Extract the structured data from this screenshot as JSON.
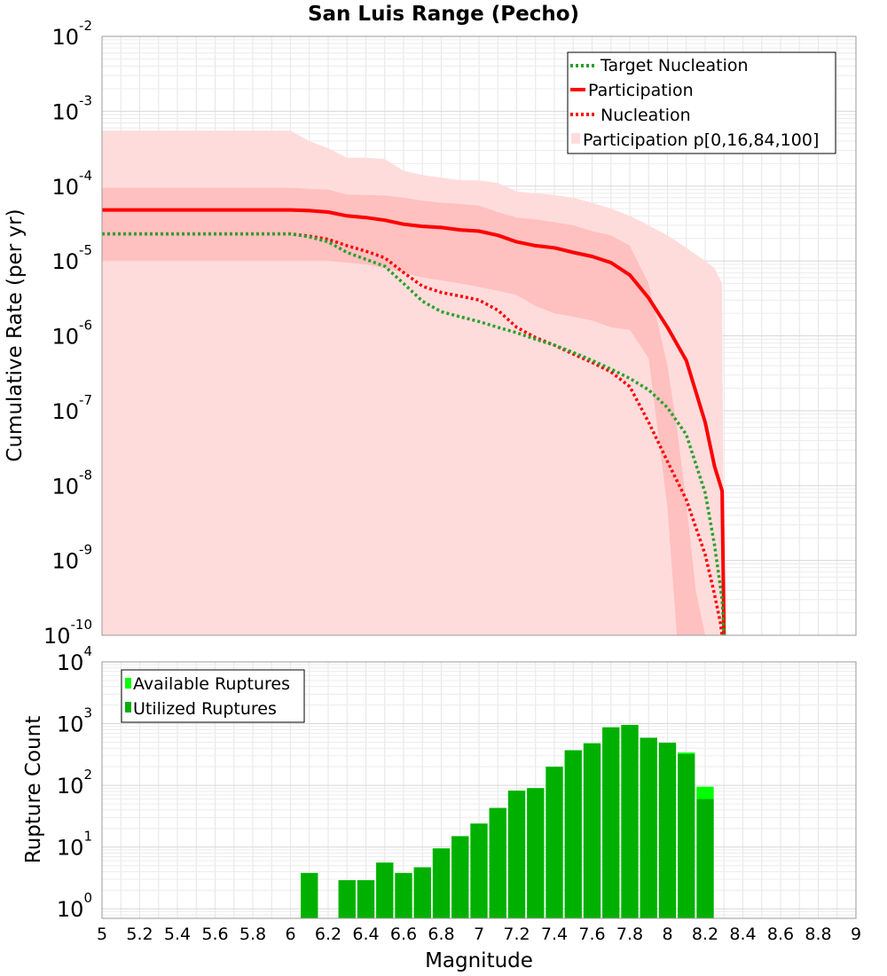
{
  "chart_data": [
    {
      "type": "line",
      "title": "San Luis Range (Pecho)",
      "xlabel": "",
      "ylabel": "Cumulative Rate (per yr)",
      "xlim": [
        5,
        9
      ],
      "ylim": [
        1e-10,
        0.01
      ],
      "yscale": "log",
      "grid": true,
      "legend_position": "top-right",
      "y_ticks": [
        {
          "base": "10",
          "exp": "-10"
        },
        {
          "base": "10",
          "exp": "-9"
        },
        {
          "base": "10",
          "exp": "-8"
        },
        {
          "base": "10",
          "exp": "-7"
        },
        {
          "base": "10",
          "exp": "-6"
        },
        {
          "base": "10",
          "exp": "-5"
        },
        {
          "base": "10",
          "exp": "-4"
        },
        {
          "base": "10",
          "exp": "-3"
        },
        {
          "base": "10",
          "exp": "-2"
        }
      ],
      "bands": [
        {
          "name": "Participation p[0,16,84,100]",
          "color": "#ffdcdc",
          "x": [
            5.0,
            5.1,
            5.5,
            6.0,
            6.1,
            6.2,
            6.3,
            6.4,
            6.5,
            6.6,
            6.7,
            6.8,
            6.9,
            7.0,
            7.1,
            7.2,
            7.3,
            7.4,
            7.5,
            7.6,
            7.7,
            7.8,
            7.9,
            8.0,
            8.1,
            8.2,
            8.25,
            8.29,
            8.3
          ],
          "upper": [
            0.00055,
            0.00055,
            0.00055,
            0.00055,
            0.0004,
            0.00032,
            0.00024,
            0.00024,
            0.00023,
            0.00016,
            0.00014,
            0.00013,
            0.00012,
            0.00012,
            0.00011,
            8.5e-05,
            8e-05,
            7.6e-05,
            7e-05,
            6e-05,
            5e-05,
            4e-05,
            3e-05,
            2.2e-05,
            1.5e-05,
            1e-05,
            8e-06,
            5e-06,
            1e-10
          ],
          "lower": [
            1e-10,
            1e-10,
            1e-10,
            1e-10,
            1e-10,
            1e-10,
            1e-10,
            1e-10,
            1e-10,
            1e-10,
            1e-10,
            1e-10,
            1e-10,
            1e-10,
            1e-10,
            1e-10,
            1e-10,
            1e-10,
            1e-10,
            1e-10,
            1e-10,
            1e-10,
            1e-10,
            1e-10,
            1e-10,
            1e-10,
            1e-10,
            1e-10,
            1e-10
          ]
        },
        {
          "name": "Participation 16-84",
          "color": "#ffc0c0",
          "x": [
            5.0,
            5.1,
            5.5,
            6.0,
            6.1,
            6.2,
            6.3,
            6.4,
            6.5,
            6.6,
            6.7,
            6.8,
            6.9,
            7.0,
            7.1,
            7.2,
            7.3,
            7.4,
            7.5,
            7.6,
            7.7,
            7.8,
            7.9,
            8.0,
            8.05,
            8.1,
            8.15,
            8.2
          ],
          "upper": [
            9.5e-05,
            9.5e-05,
            9.5e-05,
            9.5e-05,
            9.2e-05,
            9e-05,
            7.7e-05,
            7.6e-05,
            7.5e-05,
            7e-05,
            6.4e-05,
            6e-05,
            5.8e-05,
            5.5e-05,
            4.5e-05,
            3.8e-05,
            3.6e-05,
            3.3e-05,
            3e-05,
            2.5e-05,
            2.2e-05,
            1.6e-05,
            5e-06,
            4e-07,
            6e-08,
            6e-09,
            4e-10,
            1e-10
          ],
          "lower": [
            1e-05,
            1e-05,
            1e-05,
            1e-05,
            1e-05,
            1e-05,
            9.5e-06,
            9e-06,
            8e-06,
            7e-06,
            6e-06,
            5.5e-06,
            5e-06,
            4.5e-06,
            4e-06,
            3.5e-06,
            2.5e-06,
            2e-06,
            1.8e-06,
            1.6e-06,
            1.3e-06,
            1.2e-06,
            5e-07,
            5e-09,
            1e-10,
            1e-10,
            1e-10,
            1e-10
          ]
        }
      ],
      "series": [
        {
          "name": "Target Nucleation",
          "color": "#2aa02a",
          "style": "dotted",
          "x": [
            5.0,
            5.5,
            6.0,
            6.1,
            6.2,
            6.3,
            6.4,
            6.5,
            6.6,
            6.7,
            6.8,
            6.9,
            7.0,
            7.1,
            7.2,
            7.3,
            7.4,
            7.5,
            7.6,
            7.7,
            7.8,
            7.9,
            8.0,
            8.1,
            8.2,
            8.25,
            8.29,
            8.3
          ],
          "y": [
            2.3e-05,
            2.3e-05,
            2.3e-05,
            2.1e-05,
            1.8e-05,
            1.3e-05,
            1.05e-05,
            8.5e-06,
            5e-06,
            2.9e-06,
            2.1e-06,
            1.8e-06,
            1.55e-06,
            1.3e-06,
            1.1e-06,
            9e-07,
            7.5e-07,
            6e-07,
            4.7e-07,
            3.6e-07,
            2.7e-07,
            1.9e-07,
            1.1e-07,
            4.8e-08,
            8e-09,
            1.6e-09,
            3e-10,
            1e-10
          ]
        },
        {
          "name": "Participation",
          "color": "#ff0000",
          "style": "solid",
          "x": [
            5.0,
            5.5,
            6.0,
            6.1,
            6.2,
            6.3,
            6.4,
            6.5,
            6.6,
            6.7,
            6.8,
            6.9,
            7.0,
            7.1,
            7.2,
            7.3,
            7.4,
            7.5,
            7.6,
            7.7,
            7.8,
            7.9,
            8.0,
            8.1,
            8.2,
            8.25,
            8.29,
            8.3
          ],
          "y": [
            4.8e-05,
            4.8e-05,
            4.8e-05,
            4.7e-05,
            4.5e-05,
            4e-05,
            3.8e-05,
            3.5e-05,
            3.1e-05,
            2.9e-05,
            2.8e-05,
            2.6e-05,
            2.5e-05,
            2.2e-05,
            1.8e-05,
            1.6e-05,
            1.5e-05,
            1.3e-05,
            1.15e-05,
            9.5e-06,
            6.5e-06,
            3.2e-06,
            1.3e-06,
            4.7e-07,
            7e-08,
            1.8e-08,
            8.5e-09,
            1e-10
          ]
        },
        {
          "name": "Nucleation",
          "color": "#ff0000",
          "style": "dotted",
          "x": [
            5.0,
            5.5,
            6.0,
            6.1,
            6.2,
            6.3,
            6.4,
            6.5,
            6.6,
            6.7,
            6.8,
            6.9,
            7.0,
            7.1,
            7.2,
            7.3,
            7.4,
            7.5,
            7.6,
            7.7,
            7.8,
            7.9,
            8.0,
            8.1,
            8.2,
            8.25,
            8.28,
            8.29
          ],
          "y": [
            2.3e-05,
            2.3e-05,
            2.3e-05,
            2.15e-05,
            1.95e-05,
            1.6e-05,
            1.35e-05,
            1.1e-05,
            7e-06,
            4.6e-06,
            3.8e-06,
            3.4e-06,
            3e-06,
            2.2e-06,
            1.3e-06,
            9.5e-07,
            7.5e-07,
            5.7e-07,
            4.4e-07,
            3.3e-07,
            2.1e-07,
            7e-08,
            2.1e-08,
            6.5e-09,
            1.2e-09,
            3.5e-10,
            1.5e-10,
            1e-10
          ]
        }
      ]
    },
    {
      "type": "bar",
      "title": "",
      "xlabel": "Magnitude",
      "ylabel": "Rupture Count",
      "xlim": [
        5,
        9
      ],
      "ylim": [
        0.7,
        10000
      ],
      "yscale": "log",
      "grid": true,
      "legend_position": "top-left",
      "x_ticks": [
        "5",
        "5.2",
        "5.4",
        "5.6",
        "5.8",
        "6",
        "6.2",
        "6.4",
        "6.6",
        "6.8",
        "7",
        "7.2",
        "7.4",
        "7.6",
        "7.8",
        "8",
        "8.2",
        "8.4",
        "8.6",
        "8.8",
        "9"
      ],
      "y_ticks": [
        {
          "base": "10",
          "exp": "0"
        },
        {
          "base": "10",
          "exp": "1"
        },
        {
          "base": "10",
          "exp": "2"
        },
        {
          "base": "10",
          "exp": "3"
        },
        {
          "base": "10",
          "exp": "4"
        }
      ],
      "bin_width": 0.1,
      "bins": [
        6.1,
        6.2,
        6.3,
        6.4,
        6.5,
        6.6,
        6.7,
        6.8,
        6.9,
        7.0,
        7.1,
        7.2,
        7.3,
        7.4,
        7.5,
        7.6,
        7.7,
        7.8,
        7.9,
        8.0,
        8.1,
        8.2
      ],
      "series": [
        {
          "name": "Available Ruptures",
          "color": "#00ff00",
          "values": [
            3.8,
            0,
            2.9,
            2.9,
            5.6,
            3.8,
            4.7,
            9.5,
            15,
            24,
            43,
            82,
            90,
            200,
            370,
            480,
            870,
            950,
            590,
            490,
            340,
            95
          ]
        },
        {
          "name": "Utilized Ruptures",
          "color": "#00b000",
          "values": [
            3.8,
            0,
            2.9,
            2.9,
            5.6,
            3.8,
            4.7,
            9.5,
            15,
            24,
            43,
            82,
            90,
            200,
            370,
            480,
            870,
            950,
            590,
            490,
            320,
            60
          ]
        }
      ]
    }
  ]
}
